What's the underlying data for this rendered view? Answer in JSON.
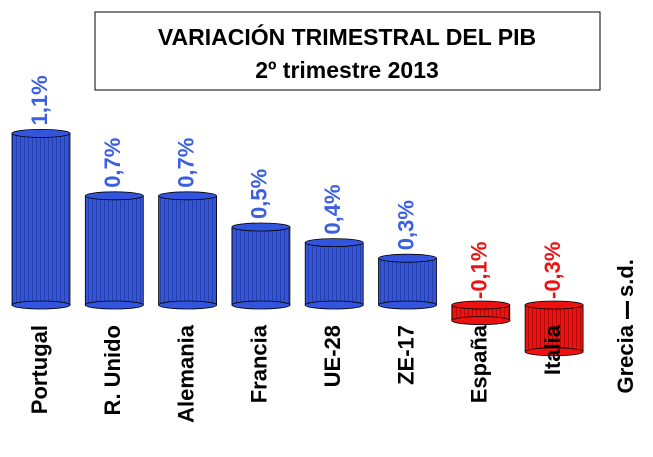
{
  "chart_data": {
    "type": "bar",
    "title": "VARIACIÓN TRIMESTRAL DEL PIB",
    "subtitle": "2º trimestre 2013",
    "categories": [
      "Portugal",
      "R. Unido",
      "Alemania",
      "Francia",
      "UE-28",
      "ZE-17",
      "España",
      "Italia",
      "Grecia"
    ],
    "values": [
      1.1,
      0.7,
      0.7,
      0.5,
      0.4,
      0.3,
      -0.1,
      -0.3,
      null
    ],
    "value_labels": [
      "1,1%",
      "0,7%",
      "0,7%",
      "0,5%",
      "0,4%",
      "0,3%",
      "-0,1%",
      "-0,3%",
      "s.d."
    ],
    "color": "#3355dd",
    "negative_color": "#ee1111"
  }
}
